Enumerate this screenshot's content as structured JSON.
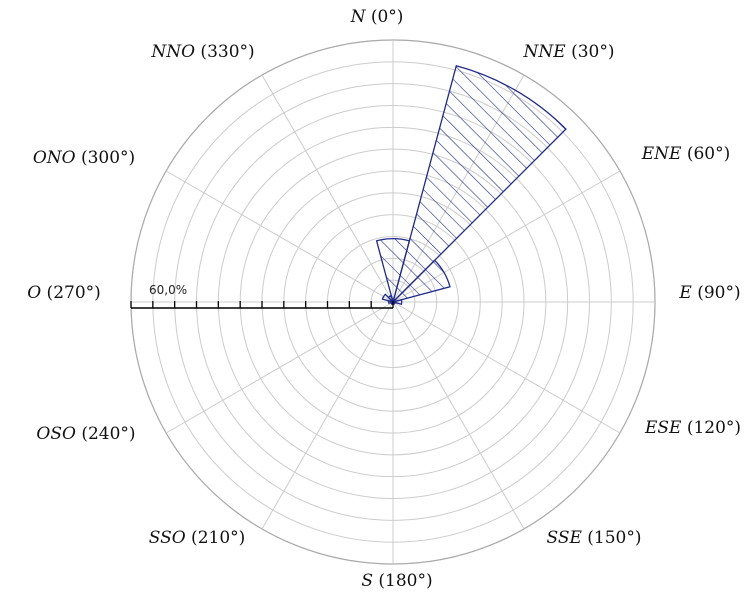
{
  "chart_data": {
    "type": "polar-bar",
    "title": "",
    "max_percent": 60,
    "ring_count": 12,
    "sector_width_deg": 30,
    "scale_label": "60,0%",
    "scale_axis_direction": "O (270°)",
    "grid": true,
    "directions": [
      {
        "abbr": "N",
        "angle_text": " (0°)",
        "angle": 0
      },
      {
        "abbr": "NNE",
        "angle_text": " (30°)",
        "angle": 30
      },
      {
        "abbr": "ENE",
        "angle_text": " (60°)",
        "angle": 60
      },
      {
        "abbr": "E",
        "angle_text": " (90°)",
        "angle": 90
      },
      {
        "abbr": "ESE",
        "angle_text": " (120°)",
        "angle": 120
      },
      {
        "abbr": "SSE",
        "angle_text": " (150°)",
        "angle": 150
      },
      {
        "abbr": "S",
        "angle_text": " (180°)",
        "angle": 180
      },
      {
        "abbr": "SSO",
        "angle_text": " (210°)",
        "angle": 210
      },
      {
        "abbr": "OSO",
        "angle_text": " (240°)",
        "angle": 240
      },
      {
        "abbr": "O",
        "angle_text": " (270°)",
        "angle": 270
      },
      {
        "abbr": "ONO",
        "angle_text": " (300°)",
        "angle": 300
      },
      {
        "abbr": "NNO",
        "angle_text": " (330°)",
        "angle": 330
      }
    ],
    "values_percent": [
      14.5,
      56,
      13.5,
      2,
      0.5,
      0.5,
      0.5,
      0.5,
      0.5,
      1,
      2.5,
      1.5
    ],
    "colors": {
      "bar": "#1f2a8a",
      "grid": "#cccccc",
      "axis": "#000000"
    }
  }
}
